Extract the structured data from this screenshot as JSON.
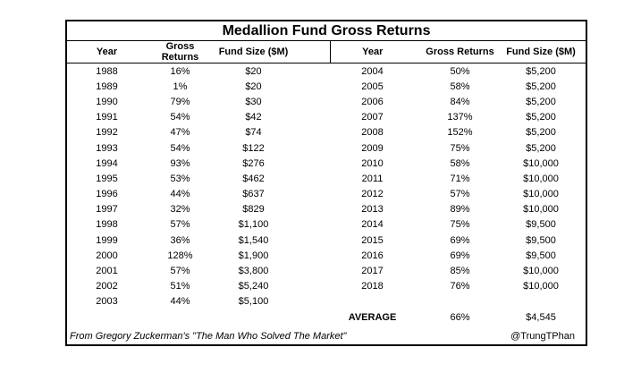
{
  "colors": {
    "text": "#000000",
    "background": "#ffffff",
    "border": "#000000"
  },
  "chart_data": {
    "type": "table",
    "title": "Medallion Fund Gross Returns",
    "columns": [
      "Year",
      "Gross Returns",
      "Fund Size ($M)"
    ],
    "rows": [
      [
        "1988",
        "16%",
        "$20"
      ],
      [
        "1989",
        "1%",
        "$20"
      ],
      [
        "1990",
        "79%",
        "$30"
      ],
      [
        "1991",
        "54%",
        "$42"
      ],
      [
        "1992",
        "47%",
        "$74"
      ],
      [
        "1993",
        "54%",
        "$122"
      ],
      [
        "1994",
        "93%",
        "$276"
      ],
      [
        "1995",
        "53%",
        "$462"
      ],
      [
        "1996",
        "44%",
        "$637"
      ],
      [
        "1997",
        "32%",
        "$829"
      ],
      [
        "1998",
        "57%",
        "$1,100"
      ],
      [
        "1999",
        "36%",
        "$1,540"
      ],
      [
        "2000",
        "128%",
        "$1,900"
      ],
      [
        "2001",
        "57%",
        "$3,800"
      ],
      [
        "2002",
        "51%",
        "$5,240"
      ],
      [
        "2003",
        "44%",
        "$5,100"
      ],
      [
        "2004",
        "50%",
        "$5,200"
      ],
      [
        "2005",
        "58%",
        "$5,200"
      ],
      [
        "2006",
        "84%",
        "$5,200"
      ],
      [
        "2007",
        "137%",
        "$5,200"
      ],
      [
        "2008",
        "152%",
        "$5,200"
      ],
      [
        "2009",
        "75%",
        "$5,200"
      ],
      [
        "2010",
        "58%",
        "$10,000"
      ],
      [
        "2011",
        "71%",
        "$10,000"
      ],
      [
        "2012",
        "57%",
        "$10,000"
      ],
      [
        "2013",
        "89%",
        "$10,000"
      ],
      [
        "2014",
        "75%",
        "$9,500"
      ],
      [
        "2015",
        "69%",
        "$9,500"
      ],
      [
        "2016",
        "69%",
        "$9,500"
      ],
      [
        "2017",
        "85%",
        "$10,000"
      ],
      [
        "2018",
        "76%",
        "$10,000"
      ]
    ],
    "average": [
      "AVERAGE",
      "66%",
      "$4,545"
    ],
    "source": "From Gregory Zuckerman's \"The Man Who Solved The Market\"",
    "credit": "@TrungTPhan"
  }
}
